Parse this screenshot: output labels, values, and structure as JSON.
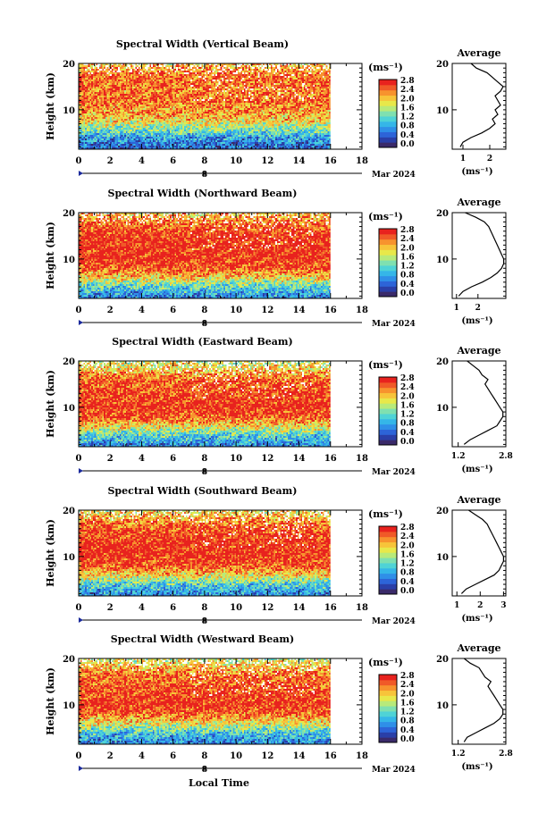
{
  "colorbar": {
    "unit_label": "(ms⁻¹)",
    "tick_labels": [
      "0.0",
      "0.4",
      "0.8",
      "1.2",
      "1.6",
      "2.0",
      "2.4",
      "2.8"
    ],
    "colors": [
      "#3a2a6a",
      "#2a3fa8",
      "#2d64d8",
      "#2f8fe8",
      "#35b6e8",
      "#4fd3d6",
      "#7fe0b0",
      "#b8ea7a",
      "#e8e84a",
      "#f7c43a",
      "#f7932e",
      "#f05a28",
      "#e8221e"
    ]
  },
  "x_axis": {
    "ticks": [
      0,
      2,
      4,
      6,
      8,
      10,
      12,
      14,
      16,
      18
    ],
    "tick_labels": [
      "0",
      "2",
      "4",
      "6",
      "8",
      "10",
      "12",
      "14",
      "16",
      "18"
    ],
    "date_marker_label": "8",
    "month_label": "Mar 2024",
    "xlabel": "Local Time"
  },
  "y_axis": {
    "ylabel": "Height (km)",
    "ticks": [
      10,
      20
    ],
    "tick_labels": [
      "10",
      "20"
    ]
  },
  "avg_plot": {
    "title": "Average",
    "xunit": "(ms⁻¹)"
  },
  "chart_data": [
    {
      "type": "heatmap",
      "title": "Spectral Width (Vertical Beam)",
      "xlabel": "",
      "ylabel": "Height (km)",
      "xlim": [
        0,
        18
      ],
      "ylim": [
        1.5,
        20
      ],
      "data_x_range": [
        0,
        16
      ],
      "zlim": [
        0,
        3.0
      ],
      "profile": [
        [
          2,
          0.6
        ],
        [
          4,
          0.9
        ],
        [
          6,
          1.6
        ],
        [
          8,
          2.2
        ],
        [
          10,
          2.4
        ],
        [
          12,
          2.6
        ],
        [
          14,
          2.5
        ],
        [
          16,
          2.6
        ],
        [
          18,
          2.5
        ],
        [
          20,
          2.2
        ]
      ],
      "average": {
        "type": "line",
        "title": "Average",
        "xlabel": "(ms⁻¹)",
        "xlim": [
          0.6,
          2.6
        ],
        "xticks": [
          1,
          2
        ],
        "xtick_labels": [
          "1",
          "2"
        ],
        "x": [
          0.9,
          1.0,
          1.3,
          1.7,
          2.0,
          2.2,
          2.1,
          2.3,
          2.2,
          2.4,
          2.3,
          2.2,
          2.4,
          2.5,
          2.3,
          2.1,
          1.9,
          1.5,
          1.3
        ],
        "y": [
          2,
          3,
          4,
          5,
          6,
          7,
          8,
          9,
          10,
          11,
          12,
          13,
          14,
          15,
          16,
          17,
          18,
          19,
          20
        ]
      }
    },
    {
      "type": "heatmap",
      "title": "Spectral Width (Northward Beam)",
      "xlabel": "",
      "ylabel": "Height (km)",
      "xlim": [
        0,
        18
      ],
      "ylim": [
        1.5,
        20
      ],
      "data_x_range": [
        0,
        16
      ],
      "zlim": [
        0,
        3.0
      ],
      "profile": [
        [
          2,
          0.8
        ],
        [
          4,
          1.3
        ],
        [
          6,
          2.1
        ],
        [
          8,
          2.7
        ],
        [
          10,
          2.9
        ],
        [
          12,
          2.9
        ],
        [
          14,
          2.9
        ],
        [
          16,
          2.8
        ],
        [
          18,
          2.5
        ],
        [
          20,
          2.2
        ]
      ],
      "average": {
        "type": "line",
        "title": "Average",
        "xlabel": "(ms⁻¹)",
        "xlim": [
          0.8,
          3.3
        ],
        "xticks": [
          1,
          2
        ],
        "xtick_labels": [
          "1",
          "2"
        ],
        "x": [
          1.1,
          1.3,
          1.7,
          2.2,
          2.6,
          2.9,
          3.1,
          3.2,
          3.2,
          3.1,
          3.0,
          2.9,
          2.8,
          2.7,
          2.6,
          2.5,
          2.3,
          1.9,
          1.4
        ],
        "y": [
          2,
          3,
          4,
          5,
          6,
          7,
          8,
          9,
          10,
          11,
          12,
          13,
          14,
          15,
          16,
          17,
          18,
          19,
          20
        ]
      }
    },
    {
      "type": "heatmap",
      "title": "Spectral Width (Eastward Beam)",
      "xlabel": "",
      "ylabel": "Height (km)",
      "xlim": [
        0,
        18
      ],
      "ylim": [
        1.5,
        20
      ],
      "data_x_range": [
        0,
        16
      ],
      "zlim": [
        0,
        3.0
      ],
      "profile": [
        [
          2,
          0.8
        ],
        [
          4,
          1.3
        ],
        [
          6,
          2.1
        ],
        [
          8,
          2.7
        ],
        [
          10,
          2.9
        ],
        [
          12,
          2.8
        ],
        [
          14,
          2.7
        ],
        [
          16,
          2.6
        ],
        [
          18,
          2.2
        ],
        [
          20,
          1.8
        ]
      ],
      "average": {
        "type": "line",
        "title": "Average",
        "xlabel": "(ms⁻¹)",
        "xlim": [
          1.0,
          2.8
        ],
        "xticks": [
          1.2,
          2.8
        ],
        "xtick_labels": [
          "1.2",
          "2.8"
        ],
        "x": [
          1.4,
          1.6,
          1.9,
          2.2,
          2.5,
          2.6,
          2.7,
          2.7,
          2.6,
          2.5,
          2.4,
          2.3,
          2.2,
          2.1,
          2.2,
          2.0,
          1.9,
          1.7,
          1.5
        ],
        "y": [
          2,
          3,
          4,
          5,
          6,
          7,
          8,
          9,
          10,
          11,
          12,
          13,
          14,
          15,
          16,
          17,
          18,
          19,
          20
        ]
      }
    },
    {
      "type": "heatmap",
      "title": "Spectral Width (Southward Beam)",
      "xlabel": "",
      "ylabel": "Height (km)",
      "xlim": [
        0,
        18
      ],
      "ylim": [
        1.5,
        20
      ],
      "data_x_range": [
        0,
        16
      ],
      "zlim": [
        0,
        3.0
      ],
      "profile": [
        [
          2,
          0.8
        ],
        [
          4,
          1.3
        ],
        [
          6,
          2.1
        ],
        [
          8,
          2.7
        ],
        [
          10,
          2.9
        ],
        [
          12,
          2.9
        ],
        [
          14,
          2.8
        ],
        [
          16,
          2.7
        ],
        [
          18,
          2.4
        ],
        [
          20,
          2.0
        ]
      ],
      "average": {
        "type": "line",
        "title": "Average",
        "xlabel": "(ms⁻¹)",
        "xlim": [
          0.8,
          3.1
        ],
        "xticks": [
          1,
          2,
          3
        ],
        "xtick_labels": [
          "1",
          "2",
          "3"
        ],
        "x": [
          1.2,
          1.4,
          1.8,
          2.2,
          2.6,
          2.8,
          2.9,
          3.0,
          3.0,
          2.9,
          2.8,
          2.7,
          2.6,
          2.5,
          2.4,
          2.3,
          2.1,
          1.8,
          1.5
        ],
        "y": [
          2,
          3,
          4,
          5,
          6,
          7,
          8,
          9,
          10,
          11,
          12,
          13,
          14,
          15,
          16,
          17,
          18,
          19,
          20
        ]
      }
    },
    {
      "type": "heatmap",
      "title": "Spectral Width (Westward Beam)",
      "xlabel": "Local Time",
      "ylabel": "Height (km)",
      "xlim": [
        0,
        18
      ],
      "ylim": [
        1.5,
        20
      ],
      "data_x_range": [
        0,
        16
      ],
      "zlim": [
        0,
        3.0
      ],
      "profile": [
        [
          2,
          0.8
        ],
        [
          4,
          1.2
        ],
        [
          6,
          2.0
        ],
        [
          8,
          2.6
        ],
        [
          10,
          2.9
        ],
        [
          12,
          2.8
        ],
        [
          14,
          2.7
        ],
        [
          16,
          2.6
        ],
        [
          18,
          2.3
        ],
        [
          20,
          1.8
        ]
      ],
      "average": {
        "type": "line",
        "title": "Average",
        "xlabel": "(ms⁻¹)",
        "xlim": [
          1.0,
          2.8
        ],
        "xticks": [
          1.2,
          2.8
        ],
        "xtick_labels": [
          "1.2",
          "2.8"
        ],
        "x": [
          1.4,
          1.5,
          1.8,
          2.1,
          2.4,
          2.6,
          2.7,
          2.7,
          2.6,
          2.5,
          2.4,
          2.3,
          2.2,
          2.3,
          2.1,
          2.0,
          1.9,
          1.6,
          1.4
        ],
        "y": [
          2,
          3,
          4,
          5,
          6,
          7,
          8,
          9,
          10,
          11,
          12,
          13,
          14,
          15,
          16,
          17,
          18,
          19,
          20
        ]
      }
    }
  ]
}
